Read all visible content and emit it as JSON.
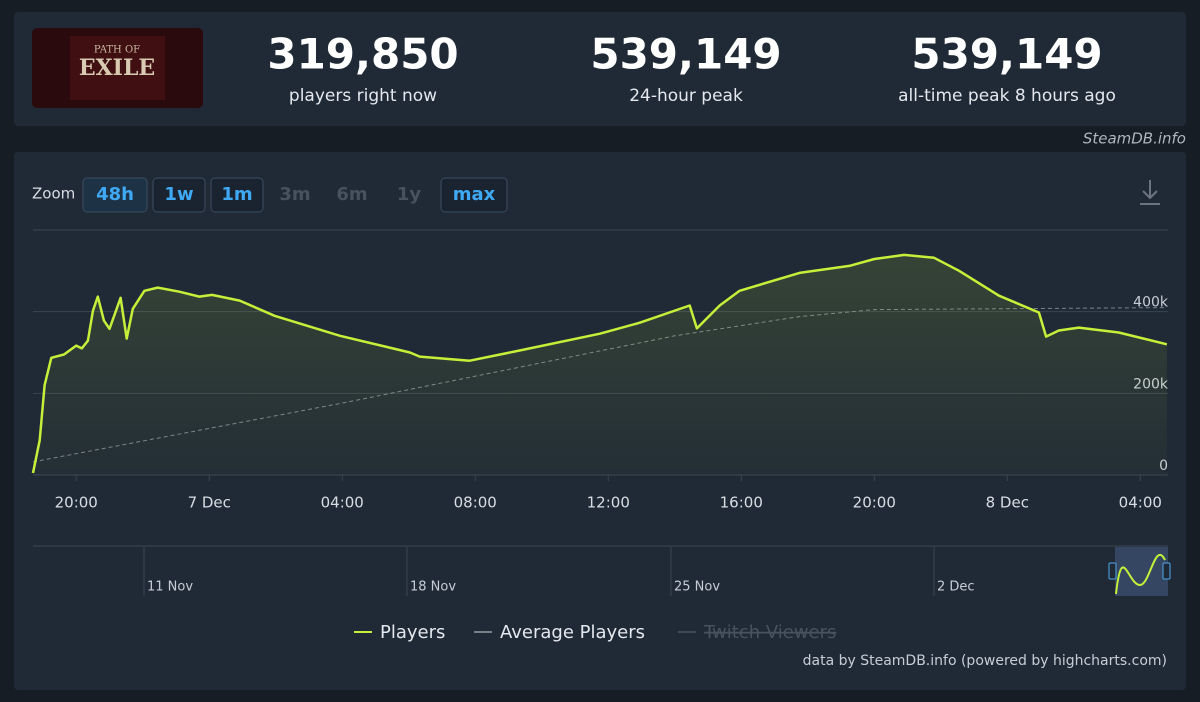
{
  "header": {
    "logo": {
      "top": "PATH OF",
      "main": "EXILE"
    },
    "stats": [
      {
        "value": "319,850",
        "label": "players right now"
      },
      {
        "value": "539,149",
        "label": "24-hour peak"
      },
      {
        "value": "539,149",
        "label": "all-time peak 8 hours ago"
      }
    ],
    "credit": "SteamDB.info"
  },
  "zoom": {
    "label": "Zoom",
    "selected": "48h",
    "buttons": [
      {
        "label": "48h",
        "enabled": true
      },
      {
        "label": "1w",
        "enabled": true
      },
      {
        "label": "1m",
        "enabled": true
      },
      {
        "label": "3m",
        "enabled": false
      },
      {
        "label": "6m",
        "enabled": false
      },
      {
        "label": "1y",
        "enabled": false
      },
      {
        "label": "max",
        "enabled": true
      }
    ]
  },
  "chart_data": {
    "type": "line",
    "xlim": [
      "6 Dec 18:42",
      "8 Dec 04:50"
    ],
    "xticks": [
      {
        "value": "6 Dec 20:00",
        "label": "20:00"
      },
      {
        "value": "7 Dec 00:00",
        "label": "7 Dec"
      },
      {
        "value": "7 Dec 04:00",
        "label": "04:00"
      },
      {
        "value": "7 Dec 08:00",
        "label": "08:00"
      },
      {
        "value": "7 Dec 12:00",
        "label": "12:00"
      },
      {
        "value": "7 Dec 16:00",
        "label": "16:00"
      },
      {
        "value": "7 Dec 20:00",
        "label": "20:00"
      },
      {
        "value": "8 Dec 00:00",
        "label": "8 Dec"
      },
      {
        "value": "8 Dec 04:00",
        "label": "04:00"
      }
    ],
    "ylim": [
      0,
      600000
    ],
    "yticks": [
      0,
      {
        "value": 200000,
        "label": "200k"
      },
      {
        "value": 400000,
        "label": "400k"
      }
    ],
    "grid": true,
    "series": [
      {
        "name": "Players",
        "color": "#c4f03a",
        "x": [
          "6 Dec 18:42",
          "6 Dec 18:54",
          "6 Dec 19:03",
          "6 Dec 19:15",
          "6 Dec 19:38",
          "6 Dec 20:00",
          "6 Dec 20:10",
          "6 Dec 20:21",
          "6 Dec 20:30",
          "6 Dec 20:39",
          "6 Dec 20:50",
          "6 Dec 21:00",
          "6 Dec 21:20",
          "6 Dec 21:31",
          "6 Dec 21:42",
          "6 Dec 22:03",
          "6 Dec 22:27",
          "6 Dec 23:06",
          "6 Dec 23:42",
          "7 Dec 00:05",
          "7 Dec 00:55",
          "7 Dec 01:58",
          "7 Dec 03:56",
          "7 Dec 06:02",
          "7 Dec 06:20",
          "7 Dec 07:50",
          "7 Dec 09:20",
          "7 Dec 11:45",
          "7 Dec 12:57",
          "7 Dec 14:27",
          "7 Dec 14:40",
          "7 Dec 15:21",
          "7 Dec 15:57",
          "7 Dec 17:45",
          "7 Dec 19:15",
          "7 Dec 20:00",
          "7 Dec 20:54",
          "7 Dec 21:48",
          "7 Dec 22:33",
          "7 Dec 23:45",
          "8 Dec 00:57",
          "8 Dec 01:10",
          "8 Dec 01:33",
          "8 Dec 02:09",
          "8 Dec 03:21",
          "8 Dec 04:48"
        ],
        "values": [
          5000,
          85000,
          220000,
          287000,
          295000,
          317000,
          310000,
          329000,
          402000,
          437000,
          378000,
          358000,
          434000,
          334000,
          407000,
          451000,
          459000,
          449000,
          437000,
          441000,
          427000,
          390000,
          341000,
          300000,
          290000,
          280000,
          305000,
          346000,
          373000,
          415000,
          359000,
          415000,
          451000,
          495000,
          512000,
          529000,
          539000,
          532000,
          500000,
          439000,
          398000,
          339000,
          354000,
          361000,
          349000,
          320000
        ]
      },
      {
        "name": "Average Players",
        "color": "#7a8088",
        "x": [
          "6 Dec 18:42",
          "7 Dec 04:00",
          "7 Dec 14:00",
          "7 Dec 17:45",
          "7 Dec 20:00",
          "8 Dec 04:48"
        ],
        "values": [
          32000,
          176000,
          341000,
          388000,
          405000,
          410000
        ]
      }
    ],
    "legend_hidden": [
      "Twitch Viewers"
    ],
    "navigator_labels": [
      "11 Nov",
      "18 Nov",
      "25 Nov",
      "2 Dec"
    ],
    "source": "data by SteamDB.info (powered by highcharts.com)"
  }
}
